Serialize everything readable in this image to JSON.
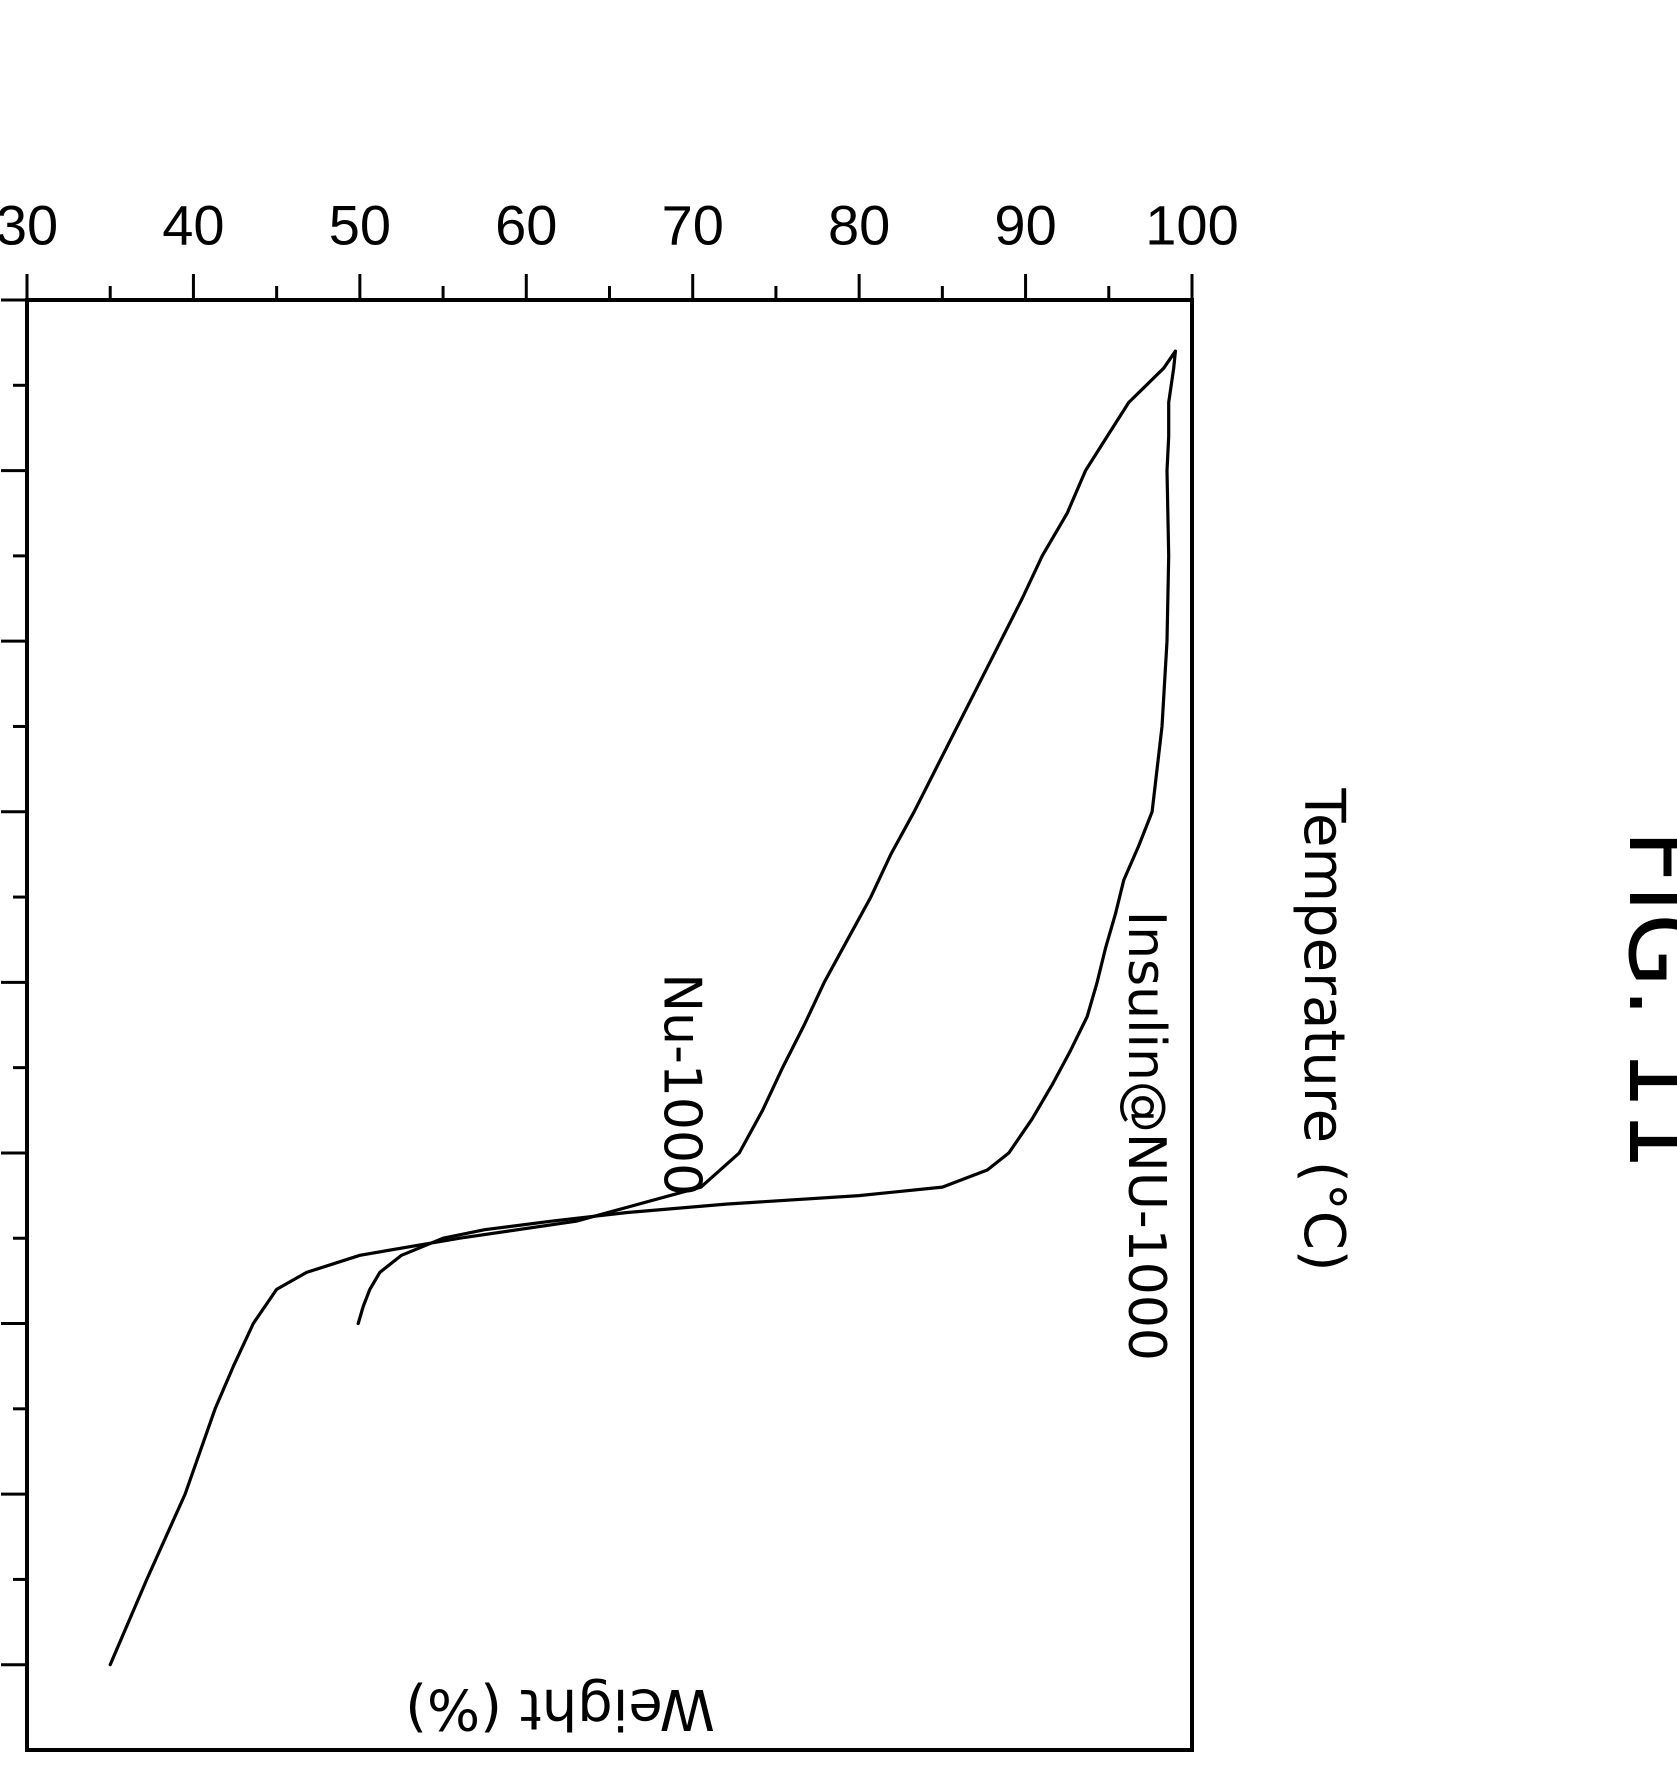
{
  "figure_label": "FIG. 11",
  "chart_data": {
    "type": "line",
    "title": "",
    "xlabel": "Temperature (°C)",
    "ylabel": "Weight (%)",
    "xlim": [
      0,
      850
    ],
    "ylim": [
      30,
      100
    ],
    "x_ticks": [
      0,
      100,
      200,
      300,
      400,
      500,
      600,
      700,
      800
    ],
    "y_ticks": [
      30,
      40,
      50,
      60,
      70,
      80,
      90,
      100
    ],
    "grid": false,
    "legend": "none",
    "series": [
      {
        "name": "Insulin@NU-1000",
        "x": [
          30,
          40,
          60,
          80,
          100,
          150,
          200,
          250,
          300,
          320,
          340,
          360,
          380,
          400,
          420,
          440,
          460,
          480,
          500,
          510,
          520,
          525,
          530,
          535,
          540,
          545,
          550,
          560,
          570,
          580,
          590,
          600
        ],
        "y": [
          99,
          98.9,
          98.6,
          98.6,
          98.5,
          98.6,
          98.5,
          98.2,
          97.6,
          96.8,
          95.9,
          95.4,
          94.8,
          94.3,
          93.7,
          92.7,
          91.6,
          90.4,
          89.0,
          87.7,
          85.0,
          80.0,
          72.0,
          66.0,
          61.5,
          57.5,
          55.0,
          52.5,
          51.2,
          50.6,
          50.2,
          49.9
        ]
      },
      {
        "name": "Nu-1000",
        "x": [
          30,
          40,
          60,
          80,
          100,
          125,
          150,
          175,
          200,
          225,
          250,
          275,
          300,
          325,
          350,
          375,
          400,
          425,
          450,
          475,
          500,
          520,
          540,
          550,
          560,
          570,
          580,
          600,
          625,
          650,
          700,
          750,
          800
        ],
        "y": [
          99,
          98.3,
          96.2,
          94.9,
          93.6,
          92.5,
          91.0,
          89.8,
          88.5,
          87.2,
          85.9,
          84.6,
          83.3,
          81.9,
          80.7,
          79.3,
          77.9,
          76.7,
          75.4,
          74.2,
          72.8,
          70.5,
          63.0,
          56.0,
          50.0,
          46.8,
          45.0,
          43.6,
          42.4,
          41.3,
          39.5,
          37.2,
          35.0
        ]
      }
    ],
    "annotations": [
      {
        "text": "Insulin@NU-1000",
        "series": 0
      },
      {
        "text": "Nu-1000",
        "series": 1
      }
    ]
  }
}
